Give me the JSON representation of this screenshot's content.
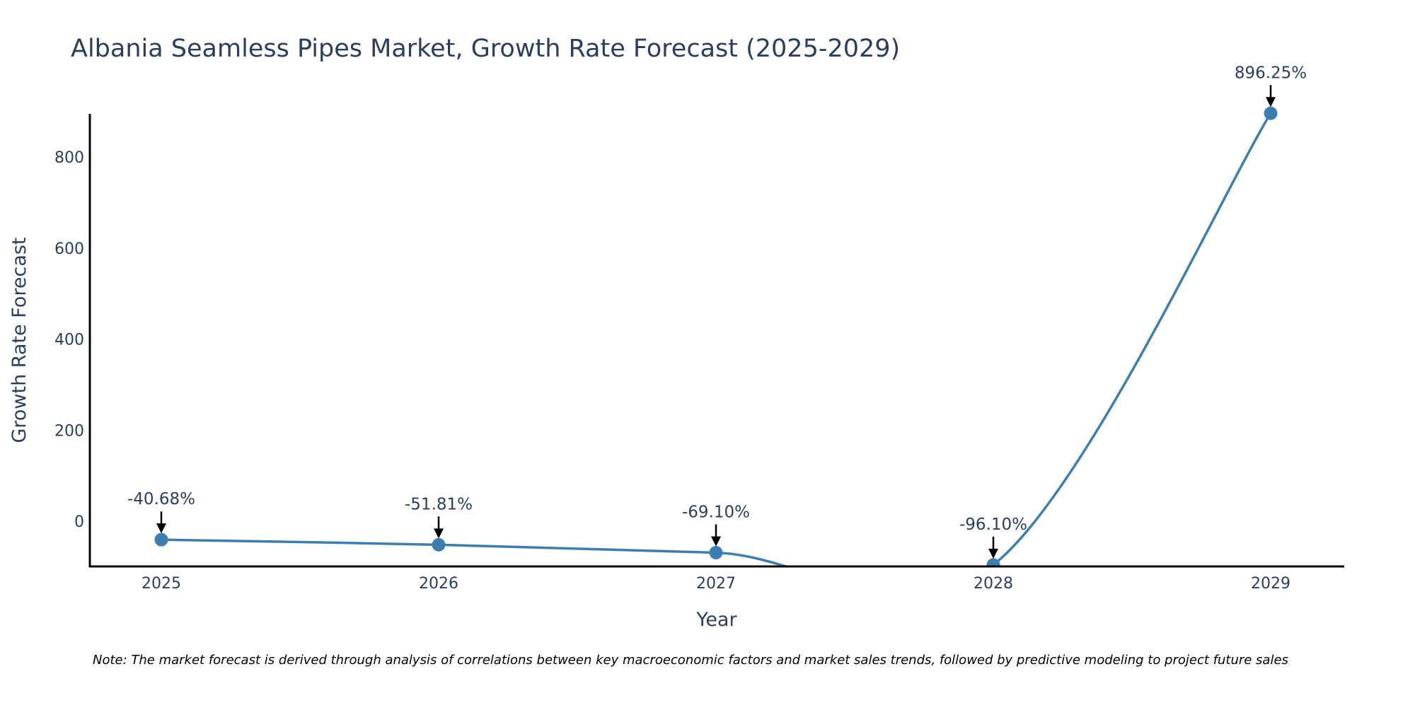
{
  "chart_data": {
    "type": "line",
    "title": "Albania Seamless Pipes Market, Growth Rate Forecast (2025-2029)",
    "xlabel": "Year",
    "ylabel": "Growth Rate Forecast",
    "x": [
      "2025",
      "2026",
      "2027",
      "2028",
      "2029"
    ],
    "series": [
      {
        "name": "Growth Rate Forecast",
        "values": [
          -40.68,
          -51.81,
          -69.1,
          -96.1,
          896.25
        ],
        "labels": [
          "-40.68%",
          "-51.81%",
          "-69.10%",
          "-96.10%",
          "896.25%"
        ]
      }
    ],
    "ylim": [
      -100,
      900
    ],
    "yticks": [
      0,
      200,
      400,
      600,
      800
    ],
    "ytick_labels": [
      "0",
      "200",
      "400",
      "600",
      "800"
    ],
    "grid": false,
    "line_shape": "spline",
    "line_color": "#3d7eb0",
    "marker_color": "#3d7eb0",
    "axis_color": "#000000",
    "text_color": "#2a3f5f"
  },
  "note": "Note: The market forecast is derived through analysis of correlations between key macroeconomic factors and market sales trends, followed by predictive modeling to project future sales"
}
